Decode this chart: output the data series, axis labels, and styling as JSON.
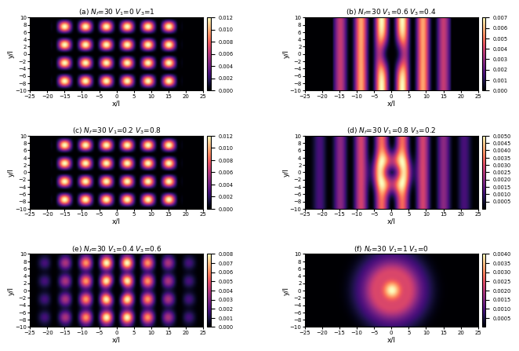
{
  "panels": [
    {
      "label": "(a)",
      "V1": 0.0,
      "V3": 1.0,
      "vmax": 0.012,
      "colorbar_ticks": [
        0,
        0.002,
        0.004,
        0.006,
        0.008,
        0.01,
        0.012
      ]
    },
    {
      "label": "(b)",
      "V1": 0.6,
      "V3": 0.4,
      "vmax": 0.007,
      "colorbar_ticks": [
        0,
        0.001,
        0.002,
        0.003,
        0.004,
        0.005,
        0.006,
        0.007
      ]
    },
    {
      "label": "(c)",
      "V1": 0.2,
      "V3": 0.8,
      "vmax": 0.012,
      "colorbar_ticks": [
        0,
        0.002,
        0.004,
        0.006,
        0.008,
        0.01,
        0.012
      ]
    },
    {
      "label": "(d)",
      "V1": 0.8,
      "V3": 0.2,
      "vmax": 0.005,
      "colorbar_ticks": [
        0.0005,
        0.001,
        0.0015,
        0.002,
        0.0025,
        0.003,
        0.0035,
        0.004,
        0.0045,
        0.005
      ]
    },
    {
      "label": "(e)",
      "V1": 0.4,
      "V3": 0.6,
      "vmax": 0.008,
      "colorbar_ticks": [
        0,
        0.001,
        0.002,
        0.003,
        0.004,
        0.005,
        0.006,
        0.007,
        0.008
      ]
    },
    {
      "label": "(f)",
      "V1": 1.0,
      "V3": 0.0,
      "vmax": 0.004,
      "colorbar_ticks": [
        0.0005,
        0.001,
        0.0015,
        0.002,
        0.0025,
        0.003,
        0.0035,
        0.004
      ]
    }
  ],
  "xrange": [
    -25,
    25
  ],
  "yrange": [
    -10,
    10
  ],
  "xlabel": "x/l",
  "ylabel": "y/l",
  "xticks": [
    -25,
    -20,
    -15,
    -10,
    -5,
    0,
    5,
    10,
    15,
    20,
    25
  ],
  "yticks": [
    -10,
    -8,
    -6,
    -4,
    -2,
    0,
    2,
    4,
    6,
    8,
    10
  ],
  "Nf": 30,
  "cmap": "magma"
}
